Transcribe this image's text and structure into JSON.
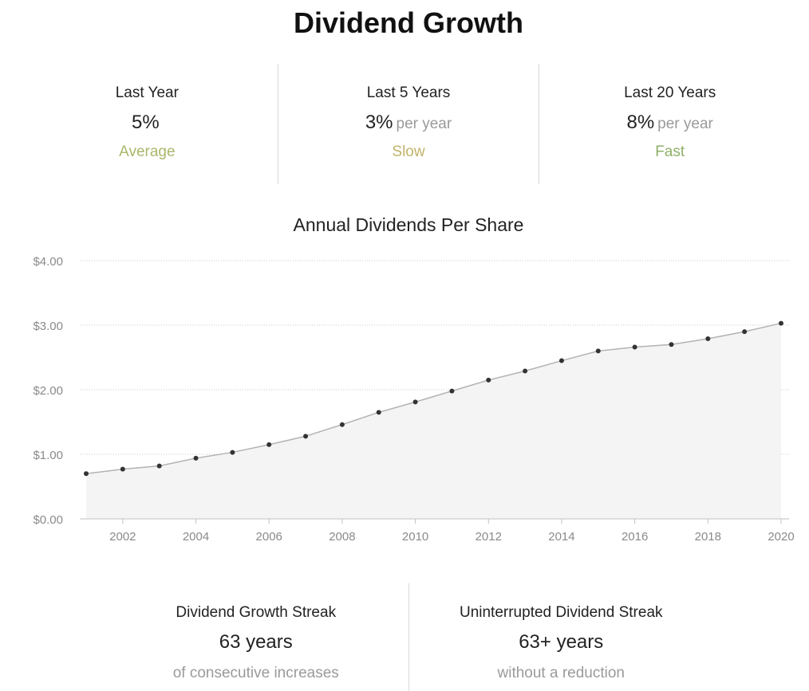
{
  "page": {
    "title": "Dividend Growth"
  },
  "stats": [
    {
      "label": "Last Year",
      "value": "5%",
      "suffix": "",
      "rating": "Average",
      "rating_color": "#a8b86a"
    },
    {
      "label": "Last 5 Years",
      "value": "3%",
      "suffix": "per year",
      "rating": "Slow",
      "rating_color": "#c2b36a"
    },
    {
      "label": "Last 20 Years",
      "value": "8%",
      "suffix": "per year",
      "rating": "Fast",
      "rating_color": "#8fb067"
    }
  ],
  "chart_data": {
    "type": "area",
    "title": "Annual Dividends Per Share",
    "xlabel": "",
    "ylabel": "",
    "x": [
      2001,
      2002,
      2003,
      2004,
      2005,
      2006,
      2007,
      2008,
      2009,
      2010,
      2011,
      2012,
      2013,
      2014,
      2015,
      2016,
      2017,
      2018,
      2019,
      2020
    ],
    "values": [
      0.7,
      0.77,
      0.82,
      0.94,
      1.03,
      1.15,
      1.28,
      1.46,
      1.65,
      1.81,
      1.98,
      2.15,
      2.29,
      2.45,
      2.6,
      2.66,
      2.7,
      2.79,
      2.9,
      3.03
    ],
    "ylim": [
      0,
      4
    ],
    "xlim": [
      2001,
      2020
    ],
    "yticks": [
      0,
      1,
      2,
      3,
      4
    ],
    "ytick_labels": [
      "$0.00",
      "$1.00",
      "$2.00",
      "$3.00",
      "$4.00"
    ],
    "xticks": [
      2002,
      2004,
      2006,
      2008,
      2010,
      2012,
      2014,
      2016,
      2018,
      2020
    ],
    "xtick_labels": [
      "2002",
      "2004",
      "2006",
      "2008",
      "2010",
      "2012",
      "2014",
      "2016",
      "2018",
      "2020"
    ],
    "grid": true,
    "legend": "none",
    "line_color": "#b3b3b3",
    "fill_color": "#f4f4f4",
    "point_color": "#333333"
  },
  "streaks": [
    {
      "label": "Dividend Growth Streak",
      "value": "63 years",
      "sub": "of consecutive increases"
    },
    {
      "label": "Uninterrupted Dividend Streak",
      "value": "63+ years",
      "sub": "without a reduction"
    }
  ]
}
